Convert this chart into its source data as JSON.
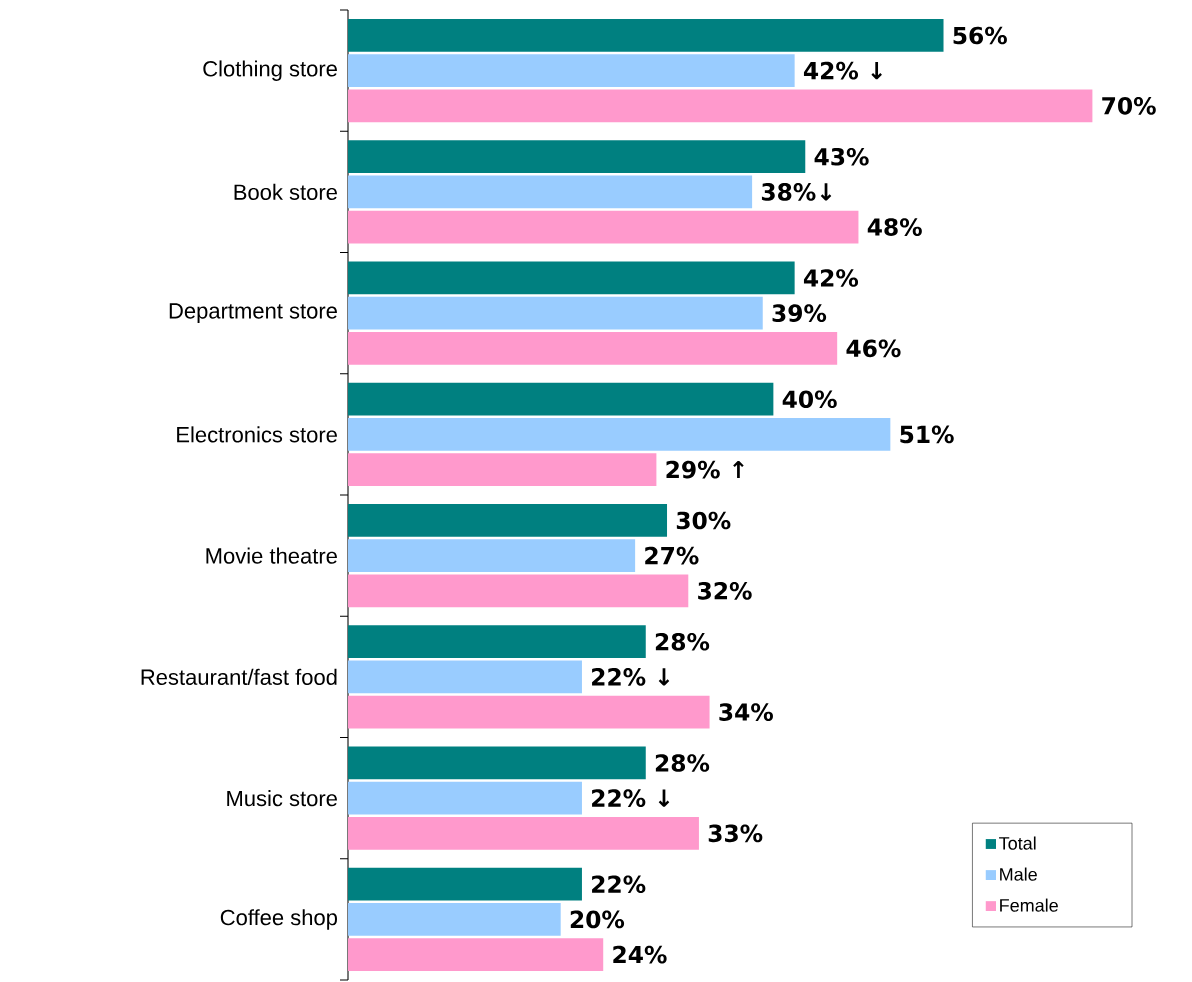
{
  "chart_data": {
    "type": "bar",
    "orientation": "horizontal",
    "categories": [
      "Clothing store",
      "Book store",
      "Department store",
      "Electronics store",
      "Movie theatre",
      "Restaurant/fast food",
      "Music store",
      "Coffee shop"
    ],
    "series": [
      {
        "name": "Total",
        "color": "#008080",
        "values": [
          56,
          43,
          42,
          40,
          30,
          28,
          28,
          22
        ],
        "value_labels": [
          "56%",
          "43%",
          "42%",
          "40%",
          "30%",
          "28%",
          "28%",
          "22%"
        ]
      },
      {
        "name": "Male",
        "color": "#99ccff",
        "values": [
          42,
          38,
          39,
          51,
          27,
          22,
          22,
          20
        ],
        "value_labels": [
          "42% ↓",
          "38%↓",
          "39%",
          "51%",
          "27%",
          "22% ↓",
          "22% ↓",
          "20%"
        ]
      },
      {
        "name": "Female",
        "color": "#ff99cc",
        "values": [
          70,
          48,
          46,
          29,
          32,
          34,
          33,
          24
        ],
        "value_labels": [
          "70%",
          "48%",
          "46%",
          "29% ↑",
          "32%",
          "34%",
          "33%",
          "24%"
        ]
      }
    ],
    "legend": "bottom right",
    "tick_labels": "y"
  }
}
